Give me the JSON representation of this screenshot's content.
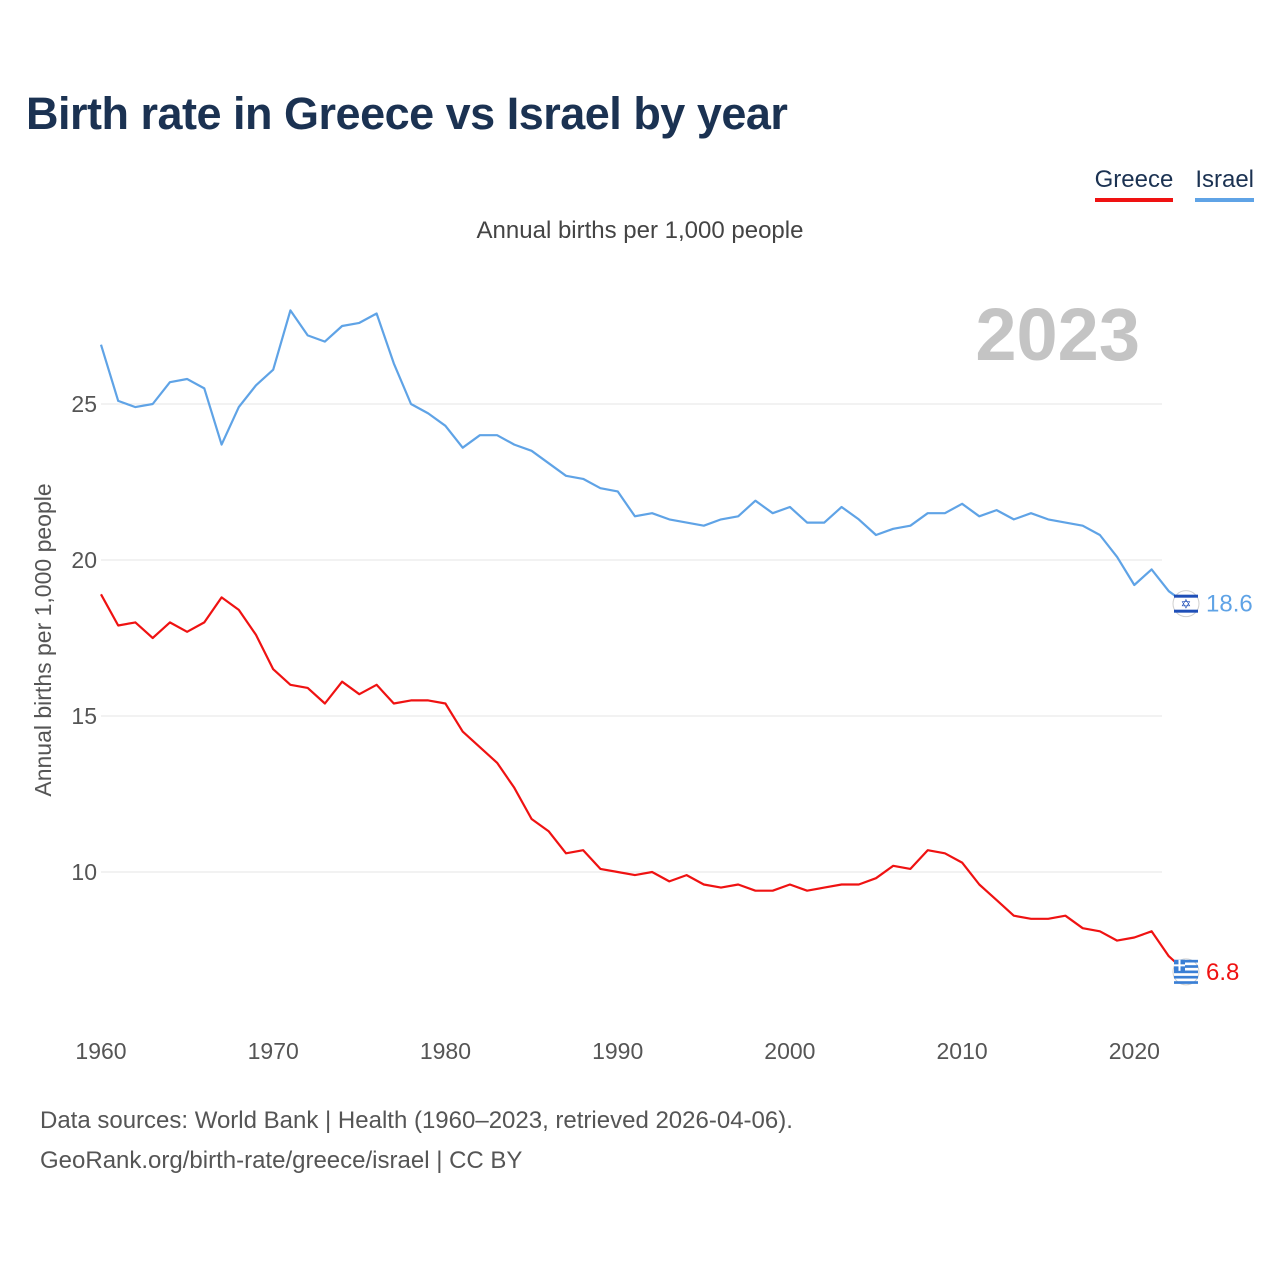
{
  "title": "Birth rate in Greece vs Israel by year",
  "subtitle": "Annual births per 1,000 people",
  "legend": [
    {
      "name": "Greece",
      "color": "#ef1212"
    },
    {
      "name": "Israel",
      "color": "#5fa3e6"
    }
  ],
  "footer": {
    "sources": "Data sources: World Bank | Health (1960–2023, retrieved 2026-04-06).",
    "link": "GeoRank.org/birth-rate/greece/israel | CC BY"
  },
  "chart_data": {
    "type": "line",
    "title": "Birth rate in Greece vs Israel by year",
    "subtitle": "Annual births per 1,000 people",
    "year_label": "2023",
    "xlabel": "",
    "ylabel": "Annual births per 1,000 people",
    "xlim": [
      1960,
      2023
    ],
    "ylim": [
      5.5,
      29
    ],
    "x_ticks": [
      1960,
      1970,
      1980,
      1990,
      2000,
      2010,
      2020
    ],
    "y_ticks": [
      10,
      15,
      20,
      25
    ],
    "grid": true,
    "legend_position": "top-right",
    "x": [
      1960,
      1961,
      1962,
      1963,
      1964,
      1965,
      1966,
      1967,
      1968,
      1969,
      1970,
      1971,
      1972,
      1973,
      1974,
      1975,
      1976,
      1977,
      1978,
      1979,
      1980,
      1981,
      1982,
      1983,
      1984,
      1985,
      1986,
      1987,
      1988,
      1989,
      1990,
      1991,
      1992,
      1993,
      1994,
      1995,
      1996,
      1997,
      1998,
      1999,
      2000,
      2001,
      2002,
      2003,
      2004,
      2005,
      2006,
      2007,
      2008,
      2009,
      2010,
      2011,
      2012,
      2013,
      2014,
      2015,
      2016,
      2017,
      2018,
      2019,
      2020,
      2021,
      2022,
      2023
    ],
    "series": [
      {
        "name": "Greece",
        "color": "#ef1212",
        "end_label": "6.8",
        "values": [
          18.9,
          17.9,
          18.0,
          17.5,
          18.0,
          17.7,
          18.0,
          18.8,
          18.4,
          17.6,
          16.5,
          16.0,
          15.9,
          15.4,
          16.1,
          15.7,
          16.0,
          15.4,
          15.5,
          15.5,
          15.4,
          14.5,
          14.0,
          13.5,
          12.7,
          11.7,
          11.3,
          10.6,
          10.7,
          10.1,
          10.0,
          9.9,
          10.0,
          9.7,
          9.9,
          9.6,
          9.5,
          9.6,
          9.4,
          9.4,
          9.6,
          9.4,
          9.5,
          9.6,
          9.6,
          9.8,
          10.2,
          10.1,
          10.7,
          10.6,
          10.3,
          9.6,
          9.1,
          8.6,
          8.5,
          8.5,
          8.6,
          8.2,
          8.1,
          7.8,
          7.9,
          8.1,
          7.3,
          6.8
        ]
      },
      {
        "name": "Israel",
        "color": "#5fa3e6",
        "end_label": "18.6",
        "values": [
          26.9,
          25.1,
          24.9,
          25.0,
          25.7,
          25.8,
          25.5,
          23.7,
          24.9,
          25.6,
          26.1,
          28.0,
          27.2,
          27.0,
          27.5,
          27.6,
          27.9,
          26.3,
          25.0,
          24.7,
          24.3,
          23.6,
          24.0,
          24.0,
          23.7,
          23.5,
          23.1,
          22.7,
          22.6,
          22.3,
          22.2,
          21.4,
          21.5,
          21.3,
          21.2,
          21.1,
          21.3,
          21.4,
          21.9,
          21.5,
          21.7,
          21.2,
          21.2,
          21.7,
          21.3,
          20.8,
          21.0,
          21.1,
          21.5,
          21.5,
          21.8,
          21.4,
          21.6,
          21.3,
          21.5,
          21.3,
          21.2,
          21.1,
          20.8,
          20.1,
          19.2,
          19.7,
          19.0,
          18.6
        ]
      }
    ]
  }
}
